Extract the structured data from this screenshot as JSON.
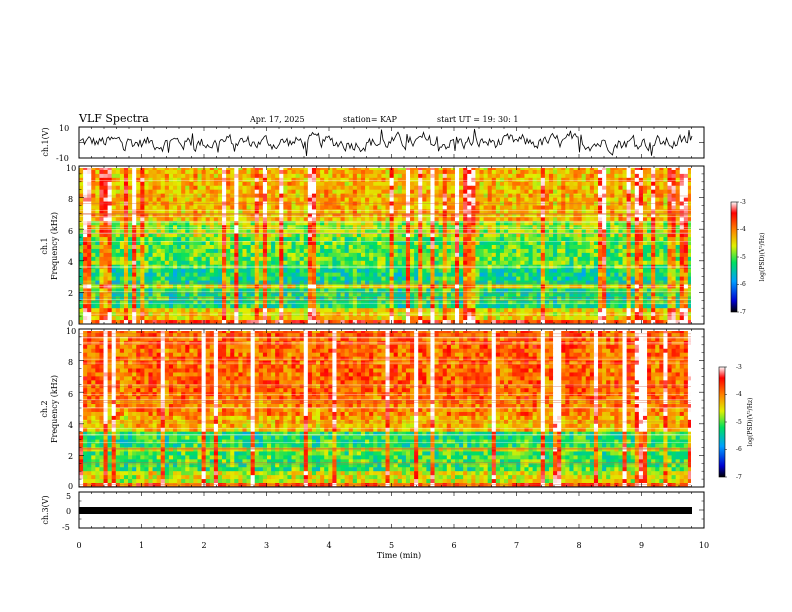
{
  "header": {
    "title": "VLF Spectra",
    "date": "Apr. 17, 2025",
    "station": "station= KAP",
    "start": "start  UT  =    19: 30: 1"
  },
  "chart_data": [
    {
      "type": "line",
      "name": "ch1-waveform",
      "ylabel": "ch.1(V)",
      "ylim": [
        -10,
        10
      ],
      "yticks": [
        "10",
        "-10"
      ],
      "xlim": [
        0,
        10
      ]
    },
    {
      "type": "heatmap",
      "name": "ch1-spectrogram",
      "ylabel_line1": "ch.1",
      "ylabel_line2": "Frequency  (kHz)",
      "ylim": [
        0,
        10
      ],
      "yticks": [
        "0",
        "2",
        "4",
        "6",
        "8",
        "10"
      ],
      "xlim": [
        0,
        10
      ],
      "colorbar": {
        "label": "log(PSD)(V²/Hz)",
        "ticks": [
          "-3",
          "-4",
          "-5",
          "-6",
          "-7"
        ],
        "range": [
          -7,
          -3
        ]
      }
    },
    {
      "type": "heatmap",
      "name": "ch2-spectrogram",
      "ylabel_line1": "ch.2",
      "ylabel_line2": "Frequency  (kHz)",
      "ylim": [
        0,
        10
      ],
      "yticks": [
        "0",
        "2",
        "4",
        "6",
        "8",
        "10"
      ],
      "xlim": [
        0,
        10
      ],
      "colorbar": {
        "label": "log(PSD)(V²/Hz)",
        "ticks": [
          "-3",
          "-4",
          "-5",
          "-6",
          "-7"
        ],
        "range": [
          -7,
          -3
        ]
      }
    },
    {
      "type": "line",
      "name": "ch3-waveform",
      "ylabel": "ch.3(V)",
      "ylim": [
        -5,
        5
      ],
      "yticks": [
        "5",
        "0",
        "-5"
      ],
      "xlim": [
        0,
        10
      ],
      "xlabel": "Time  (min)",
      "xticks": [
        "0",
        "1",
        "2",
        "3",
        "4",
        "5",
        "6",
        "7",
        "8",
        "9",
        "10"
      ]
    }
  ]
}
